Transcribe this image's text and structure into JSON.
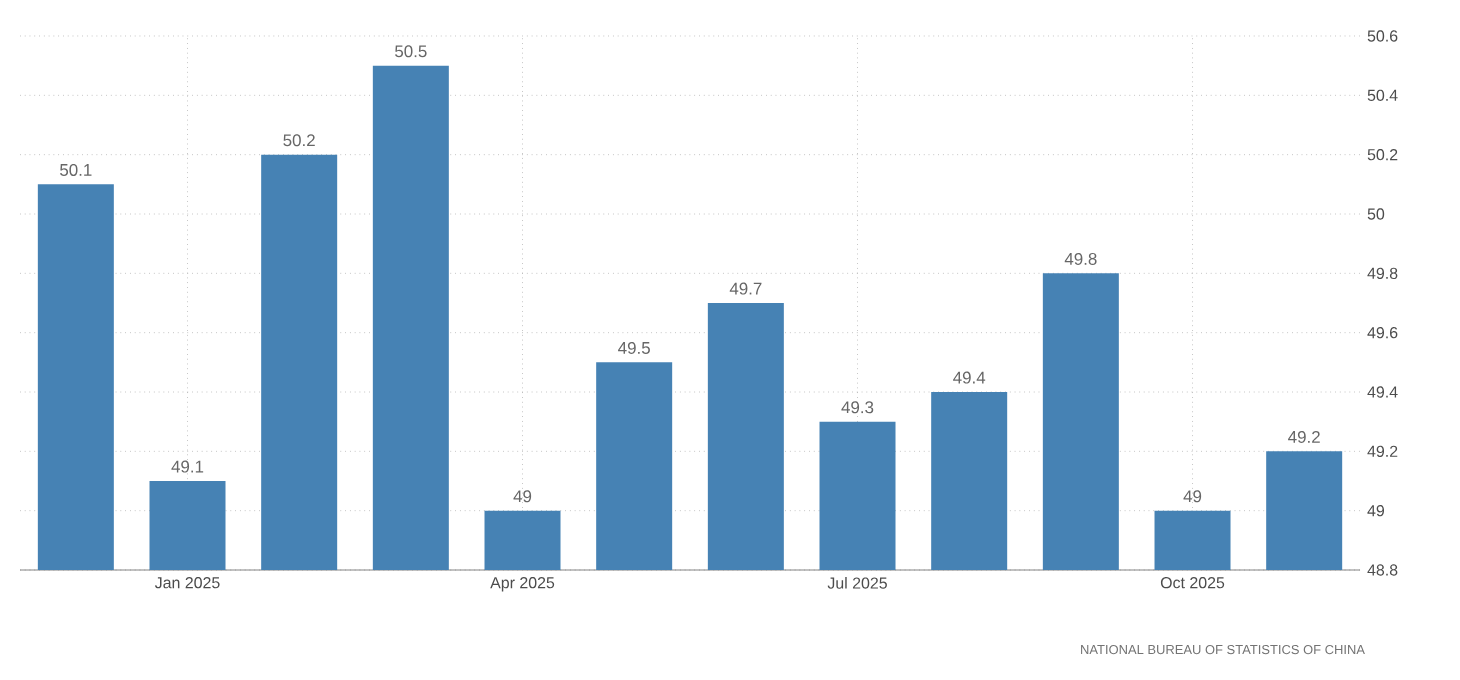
{
  "chart_data": {
    "type": "bar",
    "categories": [
      null,
      "Jan 2025",
      null,
      null,
      "Apr 2025",
      null,
      null,
      "Jul 2025",
      null,
      null,
      "Oct 2025",
      null
    ],
    "values": [
      50.1,
      49.1,
      50.2,
      50.5,
      49,
      49.5,
      49.7,
      49.3,
      49.4,
      49.8,
      49,
      49.2
    ],
    "color": "#4682b4",
    "ylim": [
      48.8,
      50.6
    ],
    "yticks": [
      48.8,
      49,
      49.2,
      49.4,
      49.6,
      49.8,
      50,
      50.2,
      50.4,
      50.6
    ],
    "grid": true,
    "data_labels": true,
    "annotations": [
      "NATIONAL BUREAU OF STATISTICS OF CHINA"
    ]
  }
}
